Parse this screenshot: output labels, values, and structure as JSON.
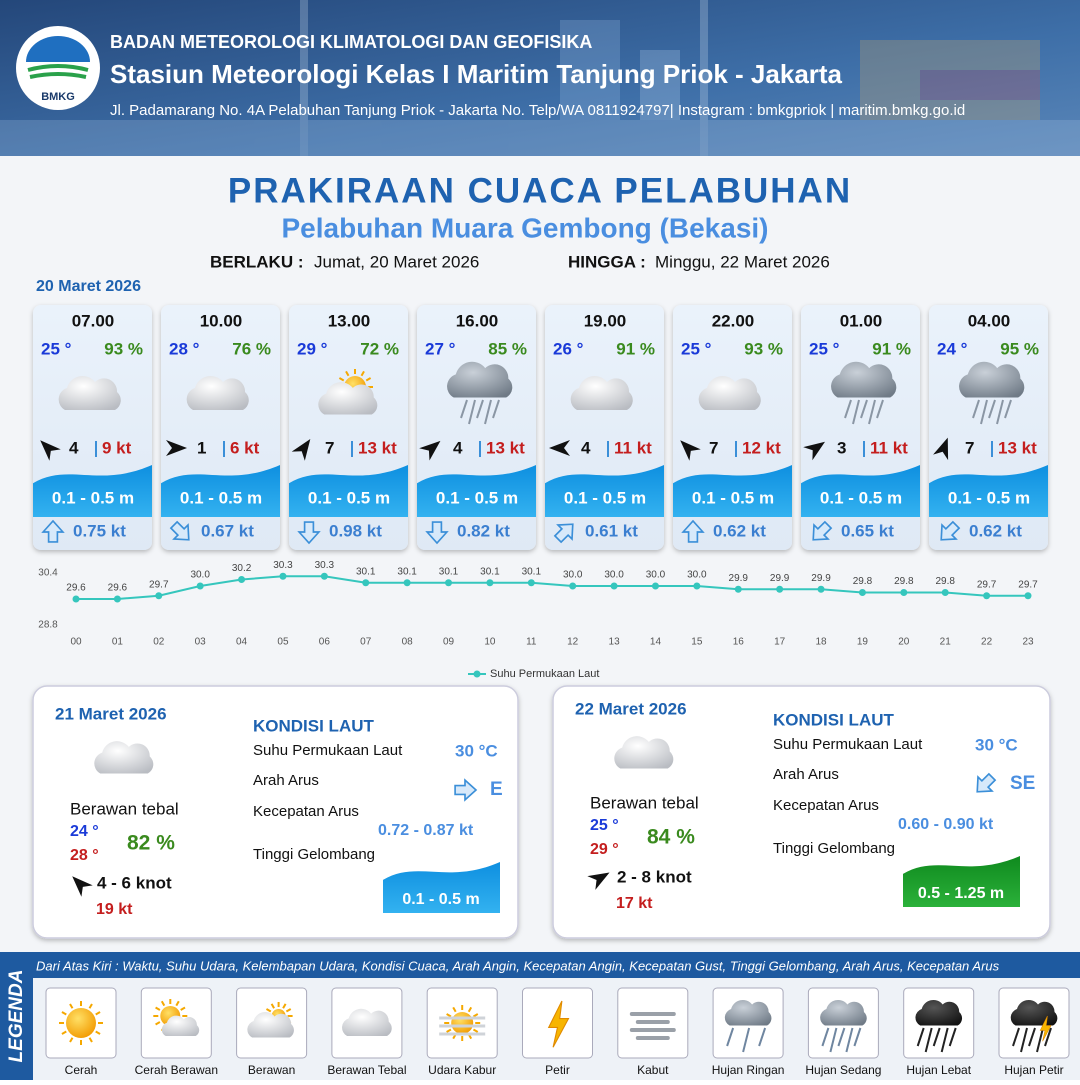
{
  "header": {
    "logo": "BMKG",
    "org": "BADAN METEOROLOGI KLIMATOLOGI DAN GEOFISIKA",
    "station": "Stasiun Meteorologi Kelas I Maritim Tanjung Priok - Jakarta",
    "address": "Jl. Padamarang No. 4A Pelabuhan Tanjung Priok - Jakarta No. Telp/WA 0811924797| Instagram : bmkgpriok | maritim.bmkg.go.id"
  },
  "title": "PRAKIRAAN CUACA PELABUHAN",
  "subtitle": "Pelabuhan Muara Gembong (Bekasi)",
  "validity": {
    "from_label": "BERLAKU :",
    "from": "Jumat, 20 Maret 2026",
    "to_label": "HINGGA :",
    "to": "Minggu, 22 Maret 2026"
  },
  "day1_date": "20 Maret 2026",
  "cards": [
    {
      "time": "07.00",
      "temp": "25 °",
      "humidity": "93 %",
      "wind": "4",
      "gust": "9 kt",
      "wave": "0.1 - 0.5 m",
      "current": "0.75 kt"
    },
    {
      "time": "10.00",
      "temp": "28 °",
      "humidity": "76 %",
      "wind": "1",
      "gust": "6 kt",
      "wave": "0.1 - 0.5 m",
      "current": "0.67 kt"
    },
    {
      "time": "13.00",
      "temp": "29 °",
      "humidity": "72 %",
      "wind": "7",
      "gust": "13 kt",
      "wave": "0.1 - 0.5 m",
      "current": "0.98 kt"
    },
    {
      "time": "16.00",
      "temp": "27 °",
      "humidity": "85 %",
      "wind": "4",
      "gust": "13 kt",
      "wave": "0.1 - 0.5 m",
      "current": "0.82 kt"
    },
    {
      "time": "19.00",
      "temp": "26 °",
      "humidity": "91 %",
      "wind": "4",
      "gust": "11 kt",
      "wave": "0.1 - 0.5 m",
      "current": "0.61 kt"
    },
    {
      "time": "22.00",
      "temp": "25 °",
      "humidity": "93 %",
      "wind": "7",
      "gust": "12 kt",
      "wave": "0.1 - 0.5 m",
      "current": "0.62 kt"
    },
    {
      "time": "01.00",
      "temp": "25 °",
      "humidity": "91 %",
      "wind": "3",
      "gust": "11 kt",
      "wave": "0.1 - 0.5 m",
      "current": "0.65 kt"
    },
    {
      "time": "04.00",
      "temp": "24 °",
      "humidity": "95 %",
      "wind": "7",
      "gust": "13 kt",
      "wave": "0.1 - 0.5 m",
      "current": "0.62 kt"
    }
  ],
  "chart_data": {
    "type": "line",
    "categories": [
      "00",
      "01",
      "02",
      "03",
      "04",
      "05",
      "06",
      "07",
      "08",
      "09",
      "10",
      "11",
      "12",
      "13",
      "14",
      "15",
      "16",
      "17",
      "18",
      "19",
      "20",
      "21",
      "22",
      "23"
    ],
    "series": [
      {
        "name": "Suhu Permukaan Laut",
        "color": "#35c6bd",
        "values": [
          29.6,
          29.6,
          29.7,
          30.0,
          30.2,
          30.3,
          30.3,
          30.1,
          30.1,
          30.1,
          30.1,
          30.1,
          30.0,
          30.0,
          30.0,
          30.0,
          29.9,
          29.9,
          29.9,
          29.8,
          29.8,
          29.8,
          29.7,
          29.7
        ],
        "value_labels": [
          "29.6",
          "29.6",
          "29.7",
          "30.0",
          "30.2",
          "30.3",
          "30.3",
          "30.1",
          "30.1",
          "30.1",
          "30.1",
          "30.1",
          "30.0",
          "30.0",
          "30.0",
          "30.0",
          "29.9",
          "29.9",
          "29.9",
          "29.8",
          "29.8",
          "29.8",
          "29.7",
          "29.7"
        ]
      }
    ],
    "ylim": [
      28.8,
      30.4
    ],
    "yticks": [
      28.8,
      30.4
    ],
    "legend": "bottom"
  },
  "days": [
    {
      "date": "21 Maret 2026",
      "weather": "Berawan tebal",
      "tmin": "24 °",
      "tmax": "28 °",
      "humidity": "82 %",
      "wind": "4  - 6 knot",
      "gust": "19 kt",
      "sea_title": "KONDISI LAUT",
      "sst_label": "Suhu Permukaan Laut",
      "sst": "30 °C",
      "dir_label": "Arah Arus",
      "dir": "E",
      "speed_label": "Kecepatan Arus",
      "speed": "0.72  - 0.87 kt",
      "wave_label": "Tinggi Gelombang",
      "wave": "0.1 - 0.5 m"
    },
    {
      "date": "22 Maret 2026",
      "weather": "Berawan tebal",
      "tmin": "25 °",
      "tmax": "29 °",
      "humidity": "84 %",
      "wind": "2  - 8 knot",
      "gust": "17 kt",
      "sea_title": "KONDISI LAUT",
      "sst_label": "Suhu Permukaan Laut",
      "sst": "30 °C",
      "dir_label": "Arah Arus",
      "dir": "SE",
      "speed_label": "Kecepatan Arus",
      "speed": "0.60 - 0.90 kt",
      "wave_label": "Tinggi Gelombang",
      "wave": "0.5 - 1.25 m"
    }
  ],
  "legend": {
    "title": "LEGENDA",
    "description": "Dari Atas Kiri : Waktu, Suhu Udara, Kelembapan Udara, Kondisi Cuaca, Arah Angin, Kecepatan Angin, Kecepatan Gust, Tinggi Gelombang, Arah Arus, Kecepatan Arus",
    "items": [
      "Cerah",
      "Cerah Berawan",
      "Berawan",
      "Berawan Tebal",
      "Udara Kabur",
      "Petir",
      "Kabut",
      "Hujan Ringan",
      "Hujan Sedang",
      "Hujan Lebat",
      "Hujan Petir"
    ]
  }
}
